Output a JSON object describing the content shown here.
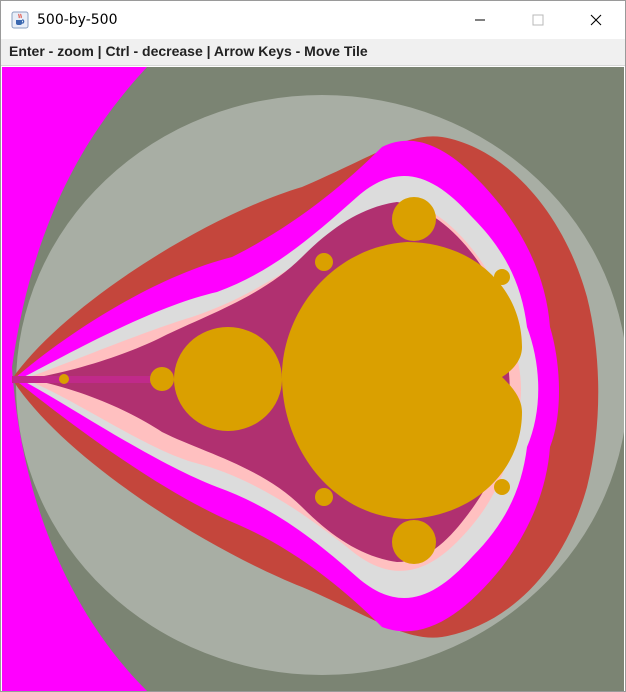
{
  "window": {
    "title": "500-by-500",
    "icon": "java-icon"
  },
  "controls": {
    "minimize_icon": "minimize-icon",
    "maximize_icon": "maximize-icon",
    "close_icon": "close-icon"
  },
  "instructions": {
    "text": "Enter - zoom | Ctrl - decrease | Arrow Keys - Move Tile"
  },
  "fractal": {
    "colors": {
      "background": "#7b8473",
      "outer_ring": "#a8aea4",
      "red_band": "#c4463c",
      "magenta": "#ff00ff",
      "light_pink": "#ffc0c0",
      "pale": "#dcdcdc",
      "set_gold": "#daa000"
    }
  }
}
